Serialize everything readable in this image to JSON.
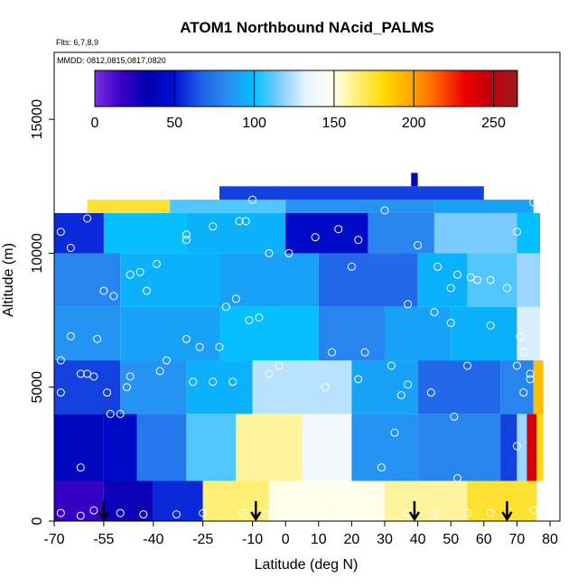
{
  "chart_data": {
    "type": "heatmap",
    "title": "ATOM1 Northbound NAcid_PALMS",
    "flights_note": "Flts: 6,7,8,9",
    "dates_note": "MMDD: 0812,0815,0817,0820",
    "xlabel": "Latitude (deg N)",
    "ylabel": "Altitude (m)",
    "xlim": [
      -70,
      83
    ],
    "ylim": [
      0,
      17500
    ],
    "x_ticks": [
      -70,
      -55,
      -40,
      -25,
      -10,
      0,
      10,
      20,
      30,
      40,
      50,
      60,
      70,
      80
    ],
    "y_ticks": [
      0,
      5000,
      10000,
      15000
    ],
    "colorbar": {
      "range": [
        0,
        265
      ],
      "ticks": [
        0,
        50,
        100,
        150,
        200,
        250
      ],
      "colors": [
        "#7a2fe0",
        "#3a00c8",
        "#0000b0",
        "#0010d0",
        "#1e5fe8",
        "#2a8cf0",
        "#00bfff",
        "#80ccff",
        "#e8f4ff",
        "#fffff0",
        "#ffee70",
        "#ffd700",
        "#ffa500",
        "#ff5a00",
        "#ee0000",
        "#c00010",
        "#9a1a1a"
      ]
    },
    "flight_arrows_lat": [
      -55,
      -9,
      39,
      67
    ],
    "grid": false,
    "legend": "none",
    "cells": [
      {
        "lat": [
          -70,
          -55
        ],
        "alt": [
          0,
          1500
        ],
        "v": 18
      },
      {
        "lat": [
          -55,
          -40
        ],
        "alt": [
          0,
          1500
        ],
        "v": 30
      },
      {
        "lat": [
          -40,
          -25
        ],
        "alt": [
          0,
          1500
        ],
        "v": 55
      },
      {
        "lat": [
          -25,
          -5
        ],
        "alt": [
          0,
          1500
        ],
        "v": 165
      },
      {
        "lat": [
          -5,
          30
        ],
        "alt": [
          0,
          1500
        ],
        "v": 150
      },
      {
        "lat": [
          30,
          55
        ],
        "alt": [
          0,
          1500
        ],
        "v": 160
      },
      {
        "lat": [
          55,
          76
        ],
        "alt": [
          0,
          1500
        ],
        "v": 175
      },
      {
        "lat": [
          -70,
          -55
        ],
        "alt": [
          1500,
          4000
        ],
        "v": 40
      },
      {
        "lat": [
          -55,
          -45
        ],
        "alt": [
          1500,
          4000
        ],
        "v": 45
      },
      {
        "lat": [
          -45,
          -30
        ],
        "alt": [
          1500,
          4000
        ],
        "v": 75
      },
      {
        "lat": [
          -30,
          -15
        ],
        "alt": [
          1500,
          4000
        ],
        "v": 110
      },
      {
        "lat": [
          -15,
          5
        ],
        "alt": [
          1500,
          4000
        ],
        "v": 160
      },
      {
        "lat": [
          5,
          20
        ],
        "alt": [
          1500,
          4000
        ],
        "v": 140
      },
      {
        "lat": [
          20,
          40
        ],
        "alt": [
          1500,
          4000
        ],
        "v": 85
      },
      {
        "lat": [
          40,
          65
        ],
        "alt": [
          1500,
          4000
        ],
        "v": 80
      },
      {
        "lat": [
          65,
          70
        ],
        "alt": [
          1500,
          4000
        ],
        "v": 60
      },
      {
        "lat": [
          70,
          73
        ],
        "alt": [
          1500,
          4000
        ],
        "v": 120
      },
      {
        "lat": [
          73,
          76
        ],
        "alt": [
          1500,
          4000
        ],
        "v": 240
      },
      {
        "lat": [
          76,
          78
        ],
        "alt": [
          1500,
          4000
        ],
        "v": 180
      },
      {
        "lat": [
          -70,
          -50
        ],
        "alt": [
          4000,
          6000
        ],
        "v": 60
      },
      {
        "lat": [
          -50,
          -30
        ],
        "alt": [
          4000,
          6000
        ],
        "v": 85
      },
      {
        "lat": [
          -30,
          -10
        ],
        "alt": [
          4000,
          6000
        ],
        "v": 95
      },
      {
        "lat": [
          -10,
          20
        ],
        "alt": [
          4000,
          6000
        ],
        "v": 125
      },
      {
        "lat": [
          20,
          40
        ],
        "alt": [
          4000,
          6000
        ],
        "v": 90
      },
      {
        "lat": [
          40,
          65
        ],
        "alt": [
          4000,
          6000
        ],
        "v": 70
      },
      {
        "lat": [
          65,
          75
        ],
        "alt": [
          4000,
          6000
        ],
        "v": 80
      },
      {
        "lat": [
          75,
          78
        ],
        "alt": [
          4000,
          6000
        ],
        "v": 190
      },
      {
        "lat": [
          -70,
          -50
        ],
        "alt": [
          6000,
          8000
        ],
        "v": 85
      },
      {
        "lat": [
          -50,
          -20
        ],
        "alt": [
          6000,
          8000
        ],
        "v": 90
      },
      {
        "lat": [
          -20,
          10
        ],
        "alt": [
          6000,
          8000
        ],
        "v": 100
      },
      {
        "lat": [
          10,
          30
        ],
        "alt": [
          6000,
          8000
        ],
        "v": 80
      },
      {
        "lat": [
          30,
          50
        ],
        "alt": [
          6000,
          8000
        ],
        "v": 90
      },
      {
        "lat": [
          50,
          70
        ],
        "alt": [
          6000,
          8000
        ],
        "v": 95
      },
      {
        "lat": [
          70,
          77
        ],
        "alt": [
          6000,
          8000
        ],
        "v": 130
      },
      {
        "lat": [
          -70,
          -50
        ],
        "alt": [
          8000,
          10000
        ],
        "v": 80
      },
      {
        "lat": [
          -50,
          -20
        ],
        "alt": [
          8000,
          10000
        ],
        "v": 95
      },
      {
        "lat": [
          -20,
          10
        ],
        "alt": [
          8000,
          10000
        ],
        "v": 90
      },
      {
        "lat": [
          10,
          40
        ],
        "alt": [
          8000,
          10000
        ],
        "v": 70
      },
      {
        "lat": [
          40,
          55
        ],
        "alt": [
          8000,
          10000
        ],
        "v": 95
      },
      {
        "lat": [
          55,
          70
        ],
        "alt": [
          8000,
          10000
        ],
        "v": 110
      },
      {
        "lat": [
          70,
          77
        ],
        "alt": [
          8000,
          10000
        ],
        "v": 120
      },
      {
        "lat": [
          -70,
          -55
        ],
        "alt": [
          10000,
          11500
        ],
        "v": 55
      },
      {
        "lat": [
          -55,
          -30
        ],
        "alt": [
          10000,
          11500
        ],
        "v": 100
      },
      {
        "lat": [
          -30,
          0
        ],
        "alt": [
          10000,
          11500
        ],
        "v": 95
      },
      {
        "lat": [
          0,
          25
        ],
        "alt": [
          10000,
          11500
        ],
        "v": 45
      },
      {
        "lat": [
          25,
          45
        ],
        "alt": [
          10000,
          11500
        ],
        "v": 80
      },
      {
        "lat": [
          45,
          70
        ],
        "alt": [
          10000,
          11500
        ],
        "v": 115
      },
      {
        "lat": [
          70,
          77
        ],
        "alt": [
          10000,
          11500
        ],
        "v": 100
      },
      {
        "lat": [
          -60,
          -35
        ],
        "alt": [
          11500,
          12000
        ],
        "v": 175
      },
      {
        "lat": [
          -35,
          0
        ],
        "alt": [
          11500,
          12000
        ],
        "v": 110
      },
      {
        "lat": [
          0,
          45
        ],
        "alt": [
          11500,
          12000
        ],
        "v": 85
      },
      {
        "lat": [
          45,
          75
        ],
        "alt": [
          11500,
          12000
        ],
        "v": 90
      },
      {
        "lat": [
          -20,
          60
        ],
        "alt": [
          12000,
          12500
        ],
        "v": 60
      },
      {
        "lat": [
          38,
          40
        ],
        "alt": [
          12500,
          13000
        ],
        "v": 40
      }
    ],
    "points": [
      {
        "lat": -68,
        "alt": 300
      },
      {
        "lat": -62,
        "alt": 200
      },
      {
        "lat": -58,
        "alt": 400
      },
      {
        "lat": -50,
        "alt": 300
      },
      {
        "lat": -43,
        "alt": 250
      },
      {
        "lat": -33,
        "alt": 250
      },
      {
        "lat": -25,
        "alt": 300
      },
      {
        "lat": -13,
        "alt": 300
      },
      {
        "lat": -6,
        "alt": 250
      },
      {
        "lat": 5,
        "alt": 300
      },
      {
        "lat": 11,
        "alt": 300
      },
      {
        "lat": 18,
        "alt": 300
      },
      {
        "lat": 27,
        "alt": 300
      },
      {
        "lat": 37,
        "alt": 300
      },
      {
        "lat": 45,
        "alt": 300
      },
      {
        "lat": 55,
        "alt": 300
      },
      {
        "lat": 62,
        "alt": 300
      },
      {
        "lat": 75,
        "alt": 400
      },
      {
        "lat": -62,
        "alt": 2000
      },
      {
        "lat": -53,
        "alt": 4000
      },
      {
        "lat": -50,
        "alt": 4000
      },
      {
        "lat": -54,
        "alt": 4800
      },
      {
        "lat": -62,
        "alt": 5500
      },
      {
        "lat": -60,
        "alt": 5500
      },
      {
        "lat": -68,
        "alt": 4800
      },
      {
        "lat": -68,
        "alt": 6000
      },
      {
        "lat": -58,
        "alt": 5400
      },
      {
        "lat": -47,
        "alt": 5400
      },
      {
        "lat": -38,
        "alt": 5600
      },
      {
        "lat": -36,
        "alt": 6000
      },
      {
        "lat": -28,
        "alt": 5200
      },
      {
        "lat": -22,
        "alt": 5200
      },
      {
        "lat": -16,
        "alt": 5200
      },
      {
        "lat": -5,
        "alt": 5500
      },
      {
        "lat": -2,
        "alt": 5800
      },
      {
        "lat": 12,
        "alt": 5000
      },
      {
        "lat": 22,
        "alt": 5300
      },
      {
        "lat": 32,
        "alt": 5800
      },
      {
        "lat": 35,
        "alt": 4700
      },
      {
        "lat": 37,
        "alt": 5100
      },
      {
        "lat": 44,
        "alt": 4800
      },
      {
        "lat": 51,
        "alt": 3900
      },
      {
        "lat": 55,
        "alt": 5800
      },
      {
        "lat": 70,
        "alt": 5800
      },
      {
        "lat": 72,
        "alt": 6300
      },
      {
        "lat": 74,
        "alt": 5500
      },
      {
        "lat": 74,
        "alt": 5300
      },
      {
        "lat": 72,
        "alt": 4800
      },
      {
        "lat": 70,
        "alt": 2800
      },
      {
        "lat": 52,
        "alt": 1600
      },
      {
        "lat": 33,
        "alt": 3300
      },
      {
        "lat": 29,
        "alt": 2000
      },
      {
        "lat": -30,
        "alt": 6800
      },
      {
        "lat": -26,
        "alt": 6500
      },
      {
        "lat": -20,
        "alt": 6500
      },
      {
        "lat": -11,
        "alt": 7500
      },
      {
        "lat": -8,
        "alt": 7600
      },
      {
        "lat": -18,
        "alt": 8000
      },
      {
        "lat": -15,
        "alt": 8300
      },
      {
        "lat": 14,
        "alt": 6300
      },
      {
        "lat": 24,
        "alt": 6300
      },
      {
        "lat": 37,
        "alt": 8100
      },
      {
        "lat": 45,
        "alt": 7800
      },
      {
        "lat": 50,
        "alt": 7400
      },
      {
        "lat": 62,
        "alt": 7300
      },
      {
        "lat": 71,
        "alt": 6900
      },
      {
        "lat": -65,
        "alt": 6900
      },
      {
        "lat": -57,
        "alt": 6800
      },
      {
        "lat": -52,
        "alt": 8400
      },
      {
        "lat": -55,
        "alt": 8600
      },
      {
        "lat": -42,
        "alt": 8600
      },
      {
        "lat": -47,
        "alt": 9200
      },
      {
        "lat": -44,
        "alt": 9300
      },
      {
        "lat": -39,
        "alt": 9600
      },
      {
        "lat": -65,
        "alt": 10200
      },
      {
        "lat": -68,
        "alt": 10800
      },
      {
        "lat": -60,
        "alt": 11300
      },
      {
        "lat": -30,
        "alt": 10500
      },
      {
        "lat": -30,
        "alt": 10700
      },
      {
        "lat": -22,
        "alt": 11000
      },
      {
        "lat": -14,
        "alt": 11200
      },
      {
        "lat": -12,
        "alt": 11200
      },
      {
        "lat": -5,
        "alt": 10000
      },
      {
        "lat": 1,
        "alt": 10000
      },
      {
        "lat": 9,
        "alt": 10600
      },
      {
        "lat": 16,
        "alt": 10900
      },
      {
        "lat": 22,
        "alt": 10500
      },
      {
        "lat": 30,
        "alt": 11600
      },
      {
        "lat": 40,
        "alt": 10300
      },
      {
        "lat": 46,
        "alt": 9500
      },
      {
        "lat": 50,
        "alt": 8700
      },
      {
        "lat": 52,
        "alt": 9200
      },
      {
        "lat": 56,
        "alt": 9100
      },
      {
        "lat": 58,
        "alt": 9000
      },
      {
        "lat": 62,
        "alt": 9000
      },
      {
        "lat": 67,
        "alt": 8700
      },
      {
        "lat": 70,
        "alt": 10800
      },
      {
        "lat": 75,
        "alt": 11900
      },
      {
        "lat": -10,
        "alt": 12000
      },
      {
        "lat": 20,
        "alt": 9500
      },
      {
        "lat": -48,
        "alt": 5000
      }
    ]
  }
}
